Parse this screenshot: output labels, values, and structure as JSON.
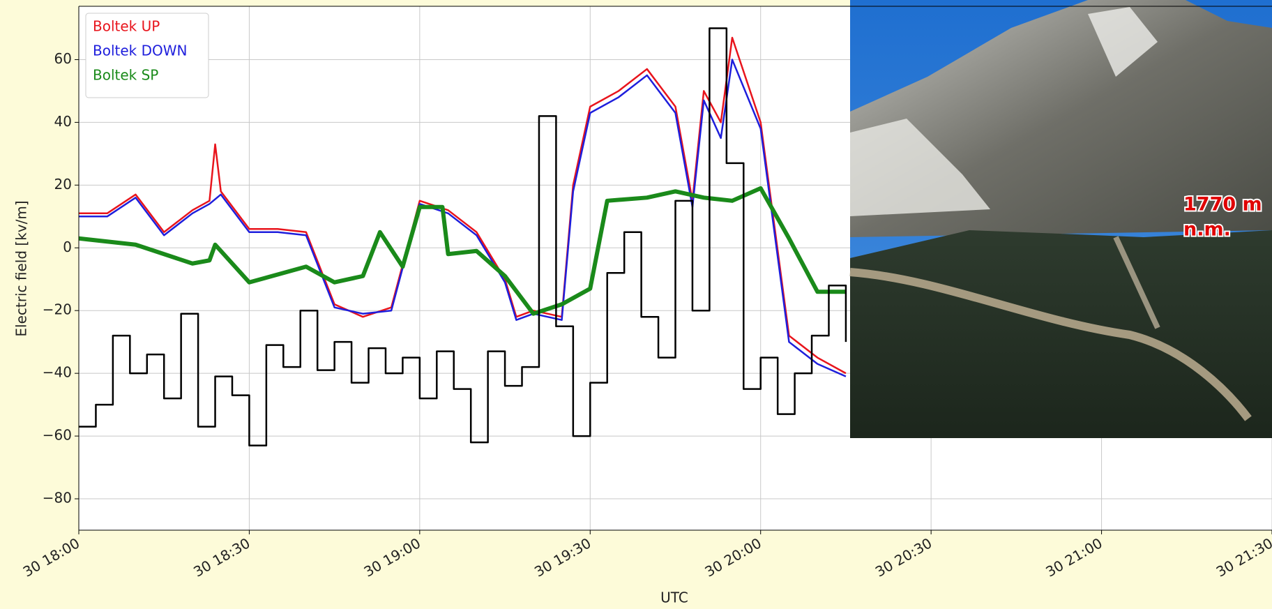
{
  "chart_data": {
    "type": "line",
    "xlabel": "UTC",
    "ylabel": "Electric field [kv/m]",
    "xlim": [
      "30 18:00",
      "30 21:30"
    ],
    "xticks": [
      "30 18:00",
      "30 18:30",
      "30 19:00",
      "30 19:30",
      "30 20:00",
      "30 20:30",
      "30 21:00",
      "30 21:30"
    ],
    "ylim": [
      -90,
      77
    ],
    "yticks": [
      {
        "value": -80,
        "label": "−80"
      },
      {
        "value": -60,
        "label": "−60"
      },
      {
        "value": -40,
        "label": "−40"
      },
      {
        "value": -20,
        "label": "−20"
      },
      0,
      20,
      40,
      60
    ],
    "grid": true,
    "legend": "upper left",
    "annotation": [
      "1770 m",
      "n.m."
    ],
    "series": [
      {
        "name": "Boltek UP",
        "color": "#e8141c",
        "x": [
          "30 18:00",
          "30 18:05",
          "30 18:10",
          "30 18:15",
          "30 18:20",
          "30 18:23",
          "30 18:24",
          "30 18:25",
          "30 18:30",
          "30 18:35",
          "30 18:40",
          "30 18:45",
          "30 18:50",
          "30 18:55",
          "30 19:00",
          "30 19:05",
          "30 19:10",
          "30 19:15",
          "30 19:17",
          "30 19:20",
          "30 19:25",
          "30 19:27",
          "30 19:30",
          "30 19:35",
          "30 19:40",
          "30 19:45",
          "30 19:48",
          "30 19:50",
          "30 19:53",
          "30 19:55",
          "30 20:00",
          "30 20:05",
          "30 20:10",
          "30 20:15"
        ],
        "values": [
          11,
          11,
          17,
          5,
          12,
          15,
          33,
          18,
          6,
          6,
          5,
          -18,
          -22,
          -19,
          15,
          12,
          5,
          -10,
          -22,
          -20,
          -22,
          20,
          45,
          50,
          57,
          45,
          15,
          50,
          40,
          67,
          40,
          -28,
          -35,
          -40
        ]
      },
      {
        "name": "Boltek DOWN",
        "color": "#1e1edc",
        "x": [
          "30 18:00",
          "30 18:05",
          "30 18:10",
          "30 18:15",
          "30 18:20",
          "30 18:23",
          "30 18:25",
          "30 18:30",
          "30 18:35",
          "30 18:40",
          "30 18:45",
          "30 18:50",
          "30 18:55",
          "30 19:00",
          "30 19:05",
          "30 19:10",
          "30 19:15",
          "30 19:17",
          "30 19:20",
          "30 19:25",
          "30 19:27",
          "30 19:30",
          "30 19:35",
          "30 19:40",
          "30 19:45",
          "30 19:48",
          "30 19:50",
          "30 19:53",
          "30 19:55",
          "30 20:00",
          "30 20:05",
          "30 20:10",
          "30 20:15"
        ],
        "values": [
          10,
          10,
          16,
          4,
          11,
          14,
          17,
          5,
          5,
          4,
          -19,
          -21,
          -20,
          14,
          11,
          4,
          -11,
          -23,
          -21,
          -23,
          18,
          43,
          48,
          55,
          43,
          13,
          47,
          35,
          60,
          38,
          -30,
          -37,
          -41
        ]
      },
      {
        "name": "Boltek SP",
        "color": "#1a8a1a",
        "x": [
          "30 18:00",
          "30 18:10",
          "30 18:20",
          "30 18:23",
          "30 18:24",
          "30 18:30",
          "30 18:40",
          "30 18:45",
          "30 18:50",
          "30 18:53",
          "30 18:57",
          "30 19:00",
          "30 19:04",
          "30 19:05",
          "30 19:10",
          "30 19:15",
          "30 19:20",
          "30 19:25",
          "30 19:30",
          "30 19:33",
          "30 19:40",
          "30 19:45",
          "30 19:50",
          "30 19:55",
          "30 20:00",
          "30 20:05",
          "30 20:10",
          "30 20:15"
        ],
        "values": [
          3,
          1,
          -5,
          -4,
          1,
          -11,
          -6,
          -11,
          -9,
          5,
          -6,
          13,
          13,
          -2,
          -1,
          -9,
          -21,
          -18,
          -13,
          15,
          16,
          18,
          16,
          15,
          19,
          3,
          -14,
          -14
        ]
      },
      {
        "color": "#000000",
        "drawstyle": "steps-post",
        "x": [
          "30 18:00",
          "30 18:03",
          "30 18:06",
          "30 18:09",
          "30 18:12",
          "30 18:15",
          "30 18:18",
          "30 18:21",
          "30 18:24",
          "30 18:27",
          "30 18:30",
          "30 18:33",
          "30 18:36",
          "30 18:39",
          "30 18:42",
          "30 18:45",
          "30 18:48",
          "30 18:51",
          "30 18:54",
          "30 18:57",
          "30 19:00",
          "30 19:03",
          "30 19:06",
          "30 19:09",
          "30 19:12",
          "30 19:15",
          "30 19:18",
          "30 19:21",
          "30 19:24",
          "30 19:27",
          "30 19:30",
          "30 19:33",
          "30 19:36",
          "30 19:39",
          "30 19:42",
          "30 19:45",
          "30 19:48",
          "30 19:51",
          "30 19:54",
          "30 19:57",
          "30 20:00",
          "30 20:03",
          "30 20:06",
          "30 20:09",
          "30 20:12",
          "30 20:15"
        ],
        "values": [
          -57,
          -50,
          -28,
          -40,
          -34,
          -48,
          -21,
          -57,
          -41,
          -47,
          -63,
          -31,
          -38,
          -20,
          -39,
          -30,
          -43,
          -32,
          -40,
          -35,
          -48,
          -33,
          -45,
          -62,
          -33,
          -44,
          -38,
          42,
          -25,
          -60,
          -43,
          -8,
          5,
          -22,
          -35,
          15,
          -20,
          70,
          27,
          -45,
          -35,
          -53,
          -40,
          -28,
          -12,
          -30
        ]
      }
    ]
  }
}
